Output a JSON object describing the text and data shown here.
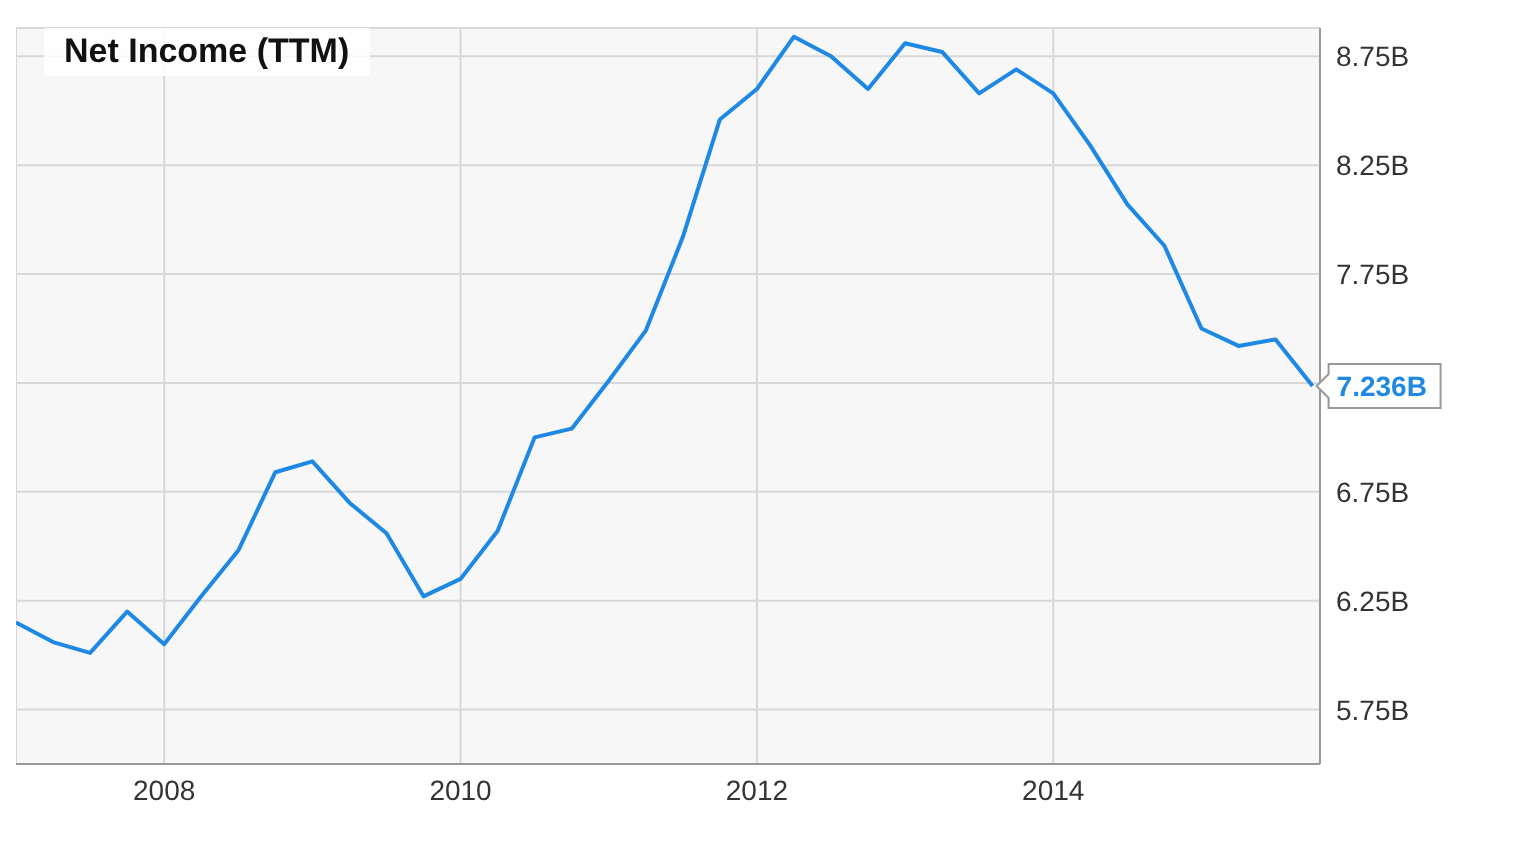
{
  "chart_data": {
    "type": "line",
    "title": "Net Income (TTM)",
    "x": [
      2007,
      2007.25,
      2007.5,
      2007.75,
      2008,
      2008.25,
      2008.5,
      2008.75,
      2009,
      2009.25,
      2009.5,
      2009.75,
      2010,
      2010.25,
      2010.5,
      2010.75,
      2011,
      2011.25,
      2011.5,
      2011.75,
      2012,
      2012.25,
      2012.5,
      2012.75,
      2013,
      2013.25,
      2013.5,
      2013.75,
      2014,
      2014.25,
      2014.5,
      2014.75,
      2015,
      2015.25,
      2015.5,
      2015.75
    ],
    "series": [
      {
        "color": "#1e88e5",
        "values": [
          6.15,
          6.06,
          6.01,
          6.2,
          6.05,
          6.27,
          6.48,
          6.84,
          6.89,
          6.7,
          6.56,
          6.27,
          6.35,
          6.57,
          7.0,
          7.04,
          7.26,
          7.49,
          7.92,
          8.46,
          8.6,
          8.84,
          8.75,
          8.6,
          8.81,
          8.77,
          8.58,
          8.69,
          8.58,
          8.34,
          8.07,
          7.88,
          7.5,
          7.42,
          7.45,
          7.236
        ]
      }
    ],
    "xlim": [
      2007,
      2015.8
    ],
    "xticks": [
      2008,
      2010,
      2012,
      2014
    ],
    "ylim": [
      5.5,
      8.88
    ],
    "yticks": [
      {
        "value": 5.75,
        "label": "5.75B"
      },
      {
        "value": 6.25,
        "label": "6.25B"
      },
      {
        "value": 6.75,
        "label": "6.75B"
      },
      {
        "value": 7.25,
        "label": null
      },
      {
        "value": 7.75,
        "label": "7.75B"
      },
      {
        "value": 8.25,
        "label": "8.25B"
      },
      {
        "value": 8.75,
        "label": "8.75B"
      }
    ],
    "annotations": [
      {
        "text": "7.236B",
        "x": 2015.75,
        "y": 7.236
      }
    ],
    "grid": true,
    "marker": "none",
    "line_style": "solid"
  }
}
